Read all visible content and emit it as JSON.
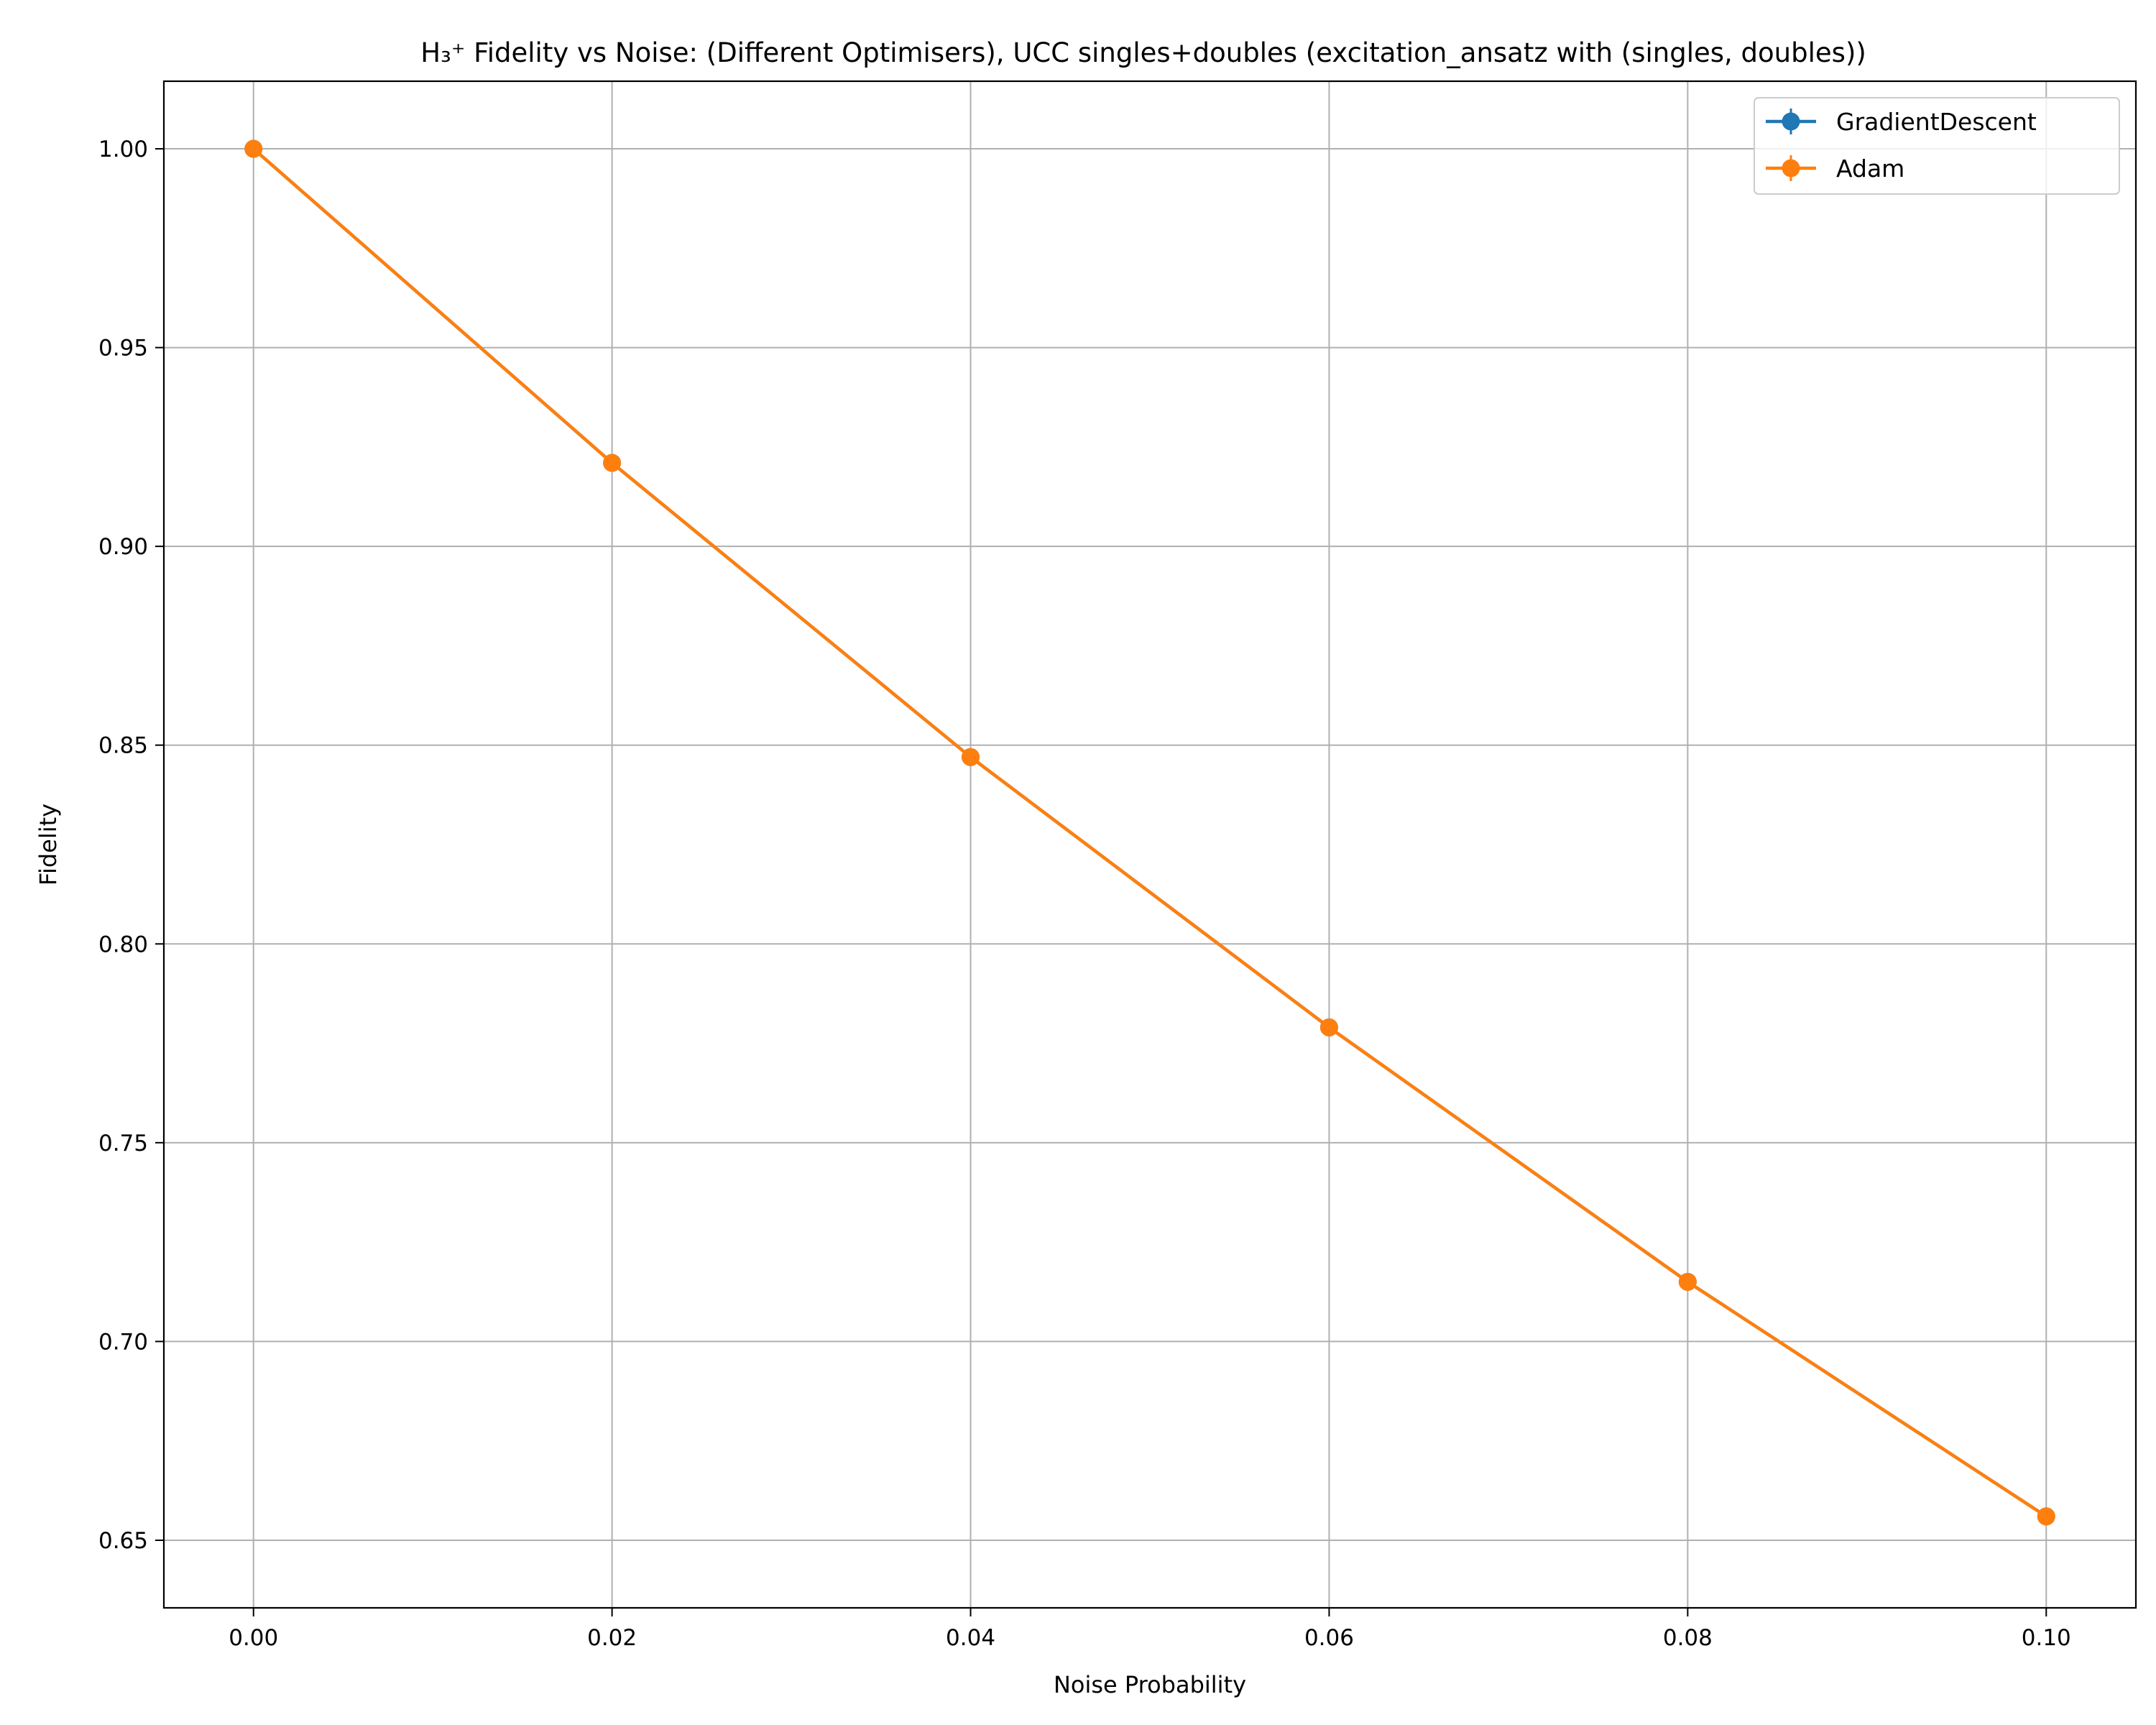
{
  "chart_data": {
    "type": "line",
    "title": "H₃⁺ Fidelity vs Noise: (Different Optimisers), UCC singles+doubles (excitation_ansatz with (singles, doubles))",
    "xlabel": "Noise Probability",
    "ylabel": "Fidelity",
    "xlim": [
      -0.005,
      0.105
    ],
    "ylim": [
      0.633,
      1.017
    ],
    "x_ticks": [
      "0.00",
      "0.02",
      "0.04",
      "0.06",
      "0.08",
      "0.10"
    ],
    "y_ticks": [
      "0.65",
      "0.70",
      "0.75",
      "0.80",
      "0.85",
      "0.90",
      "0.95",
      "1.00"
    ],
    "x": [
      0.0,
      0.02,
      0.04,
      0.06,
      0.08,
      0.1
    ],
    "series": [
      {
        "name": "GradientDescent",
        "color": "#1f77b4",
        "values": [
          1.0,
          0.921,
          0.847,
          0.779,
          0.715,
          0.656
        ]
      },
      {
        "name": "Adam",
        "color": "#ff7f0e",
        "values": [
          1.0,
          0.921,
          0.847,
          0.779,
          0.715,
          0.656
        ]
      }
    ],
    "grid": true,
    "legend_position": "top-right",
    "marker": "circle",
    "error_bars": true
  }
}
